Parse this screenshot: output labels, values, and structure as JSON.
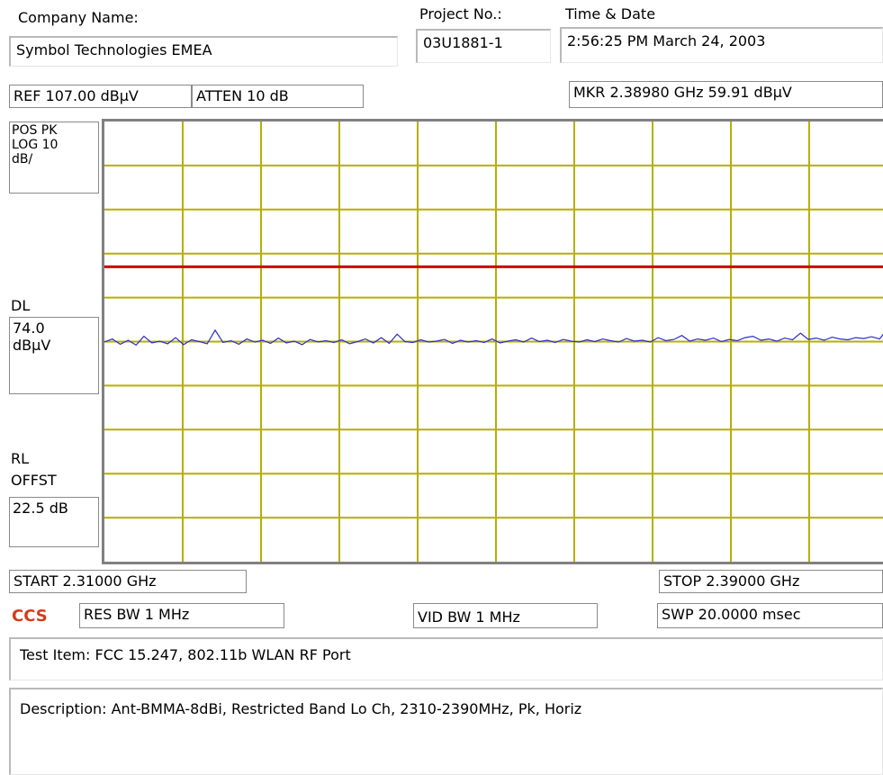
{
  "header": {
    "company_label": "Company Name:",
    "company_value": "Symbol Technologies EMEA",
    "project_label": "Project No.:",
    "project_value": "03U1881-1",
    "time_label": "Time & Date",
    "time_value": "2:56:25 PM March 24, 2003"
  },
  "settings": {
    "ref": "REF 107.00 dBµV",
    "atten": "ATTEN 10 dB",
    "marker": "MKR 2.38980 GHz   59.91 dBµV",
    "detector_line1": "POS PK",
    "detector_line2": "LOG 10",
    "detector_line3": "dB/",
    "dl_label": "DL",
    "dl_value_line1": "74.0",
    "dl_value_line2": "dBµV",
    "rl_label_line1": "RL",
    "rl_label_line2": "OFFST",
    "rl_value": "22.5 dB",
    "start": "START 2.31000 GHz",
    "stop": "STOP 2.39000 GHz",
    "res_bw": "RES BW 1 MHz",
    "vid_bw": "VID BW 1 MHz",
    "sweep": "SWP  20.0000 msec"
  },
  "logo": "CCS",
  "footer": {
    "test_item": "Test Item: FCC 15.247, 802.11b WLAN RF Port",
    "description": "Description: Ant-BMMA-8dBi, Restricted Band Lo  Ch, 2310-2390MHz, Pk, Horiz"
  },
  "colors": {
    "grid": "#b5b000",
    "display_line": "#cc0000",
    "trace": "#2a2ad0"
  },
  "chart_data": {
    "type": "line",
    "x_unit": "GHz",
    "y_unit": "dBµV",
    "xlim": [
      2.31,
      2.39
    ],
    "ylim": [
      7.0,
      107.0
    ],
    "grid": true,
    "x_divisions": 10,
    "y_divisions": 10,
    "display_line_y": 74.0,
    "trace": {
      "x_start": 2.31,
      "x_stop": 2.39,
      "values": [
        56.9,
        57.6,
        56.4,
        57.3,
        56.2,
        58.2,
        56.7,
        57.1,
        56.5,
        57.9,
        56.3,
        57.4,
        57.0,
        56.5,
        59.6,
        56.8,
        57.2,
        56.4,
        57.6,
        56.9,
        57.3,
        56.6,
        57.8,
        56.7,
        57.1,
        56.3,
        57.5,
        56.9,
        57.2,
        56.8,
        57.4,
        56.5,
        57.0,
        57.6,
        56.7,
        57.9,
        56.6,
        58.7,
        57.0,
        56.8,
        57.4,
        56.9,
        57.1,
        57.5,
        56.6,
        57.3,
        56.9,
        57.2,
        56.8,
        57.6,
        56.7,
        57.1,
        57.4,
        56.9,
        57.8,
        57.0,
        57.3,
        56.8,
        57.5,
        57.1,
        56.9,
        57.4,
        57.0,
        57.6,
        57.2,
        56.9,
        57.7,
        57.1,
        57.3,
        56.9,
        57.9,
        57.2,
        57.5,
        58.4,
        57.1,
        57.6,
        57.3,
        57.8,
        57.0,
        57.5,
        57.2,
        57.9,
        58.2,
        57.3,
        57.6,
        57.1,
        57.8,
        57.4,
        58.9,
        57.5,
        57.8,
        57.3,
        58.0,
        57.6,
        57.4,
        57.9,
        57.7,
        58.1,
        57.6,
        59.9
      ]
    }
  }
}
